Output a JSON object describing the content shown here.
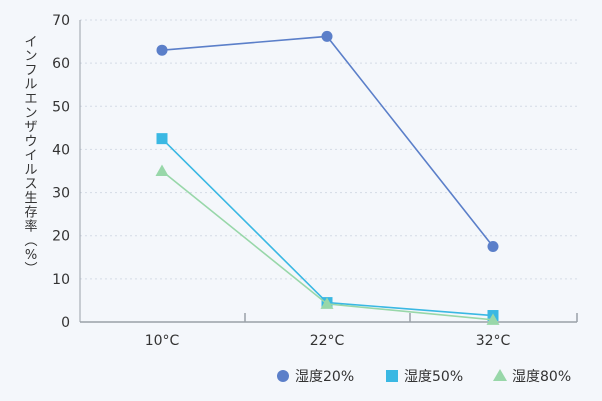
{
  "chart_data": {
    "type": "line",
    "title": "",
    "ylabel": "インフルエンザウイルス生存率（%）",
    "xlabel": "",
    "categories": [
      "10°C",
      "22°C",
      "32°C"
    ],
    "ylim": [
      0,
      70
    ],
    "yticks": [
      0,
      10,
      20,
      30,
      40,
      50,
      60,
      70
    ],
    "grid": true,
    "legend_position": "bottom-right",
    "series": [
      {
        "name": "湿度20%",
        "values": [
          63,
          66.2,
          17.5
        ],
        "color": "#5b7fc9",
        "marker": "circle"
      },
      {
        "name": "湿度50%",
        "values": [
          42.5,
          4.5,
          1.5
        ],
        "color": "#3ab8e3",
        "marker": "square"
      },
      {
        "name": "湿度80%",
        "values": [
          35,
          4.2,
          0.5
        ],
        "color": "#98d7a9",
        "marker": "triangle"
      }
    ]
  }
}
